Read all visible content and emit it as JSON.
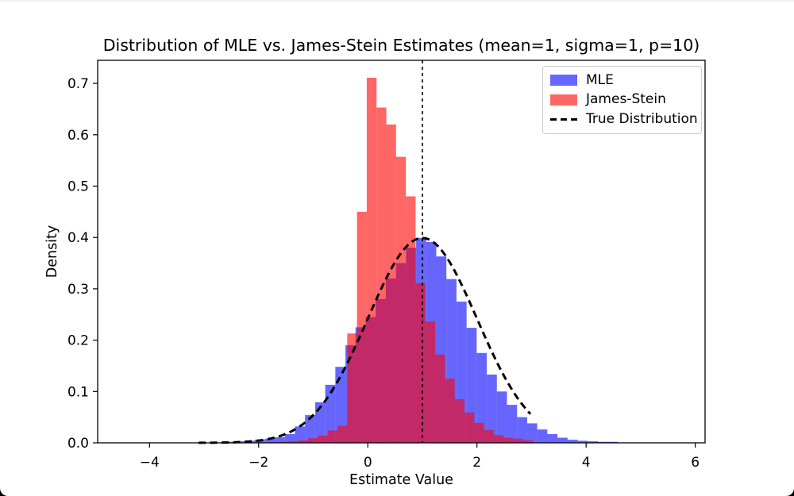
{
  "frame": {
    "corner_color": "#000000",
    "top_edge_color": "#f0f0f2"
  },
  "chart_data": {
    "type": "bar",
    "subtype": "overlaid-histograms-with-density-curve",
    "title": "Distribution of MLE vs. James-Stein Estimates (mean=1, sigma=1, p=10)",
    "xlabel": "Estimate Value",
    "ylabel": "Density",
    "xlim": [
      -4.95,
      6.18
    ],
    "ylim": [
      0,
      0.745
    ],
    "grid": false,
    "xticks": [
      {
        "v": -4,
        "label": "−4"
      },
      {
        "v": -2,
        "label": "−2"
      },
      {
        "v": 0,
        "label": "0"
      },
      {
        "v": 2,
        "label": "2"
      },
      {
        "v": 4,
        "label": "4"
      },
      {
        "v": 6,
        "label": "6"
      }
    ],
    "yticks": [
      {
        "v": 0.0,
        "label": "0.0"
      },
      {
        "v": 0.1,
        "label": "0.1"
      },
      {
        "v": 0.2,
        "label": "0.2"
      },
      {
        "v": 0.3,
        "label": "0.3"
      },
      {
        "v": 0.4,
        "label": "0.4"
      },
      {
        "v": 0.5,
        "label": "0.5"
      },
      {
        "v": 0.6,
        "label": "0.6"
      },
      {
        "v": 0.7,
        "label": "0.7"
      }
    ],
    "series": [
      {
        "name": "MLE",
        "type": "histogram",
        "color": "#0000ff",
        "alpha": 0.6,
        "bin_start": -2.63,
        "bin_width": 0.185,
        "heights": [
          0.002,
          0.003,
          0.004,
          0.006,
          0.008,
          0.011,
          0.017,
          0.032,
          0.054,
          0.079,
          0.113,
          0.148,
          0.19,
          0.225,
          0.245,
          0.28,
          0.32,
          0.35,
          0.38,
          0.399,
          0.391,
          0.363,
          0.319,
          0.275,
          0.224,
          0.175,
          0.133,
          0.1,
          0.074,
          0.05,
          0.038,
          0.026,
          0.017,
          0.01,
          0.006,
          0.004,
          0.003,
          0.002,
          0.002
        ]
      },
      {
        "name": "James-Stein",
        "type": "histogram",
        "color": "#ff0000",
        "alpha": 0.6,
        "bin_start": -1.63,
        "bin_width": 0.179,
        "heights": [
          0.002,
          0.003,
          0.005,
          0.009,
          0.014,
          0.024,
          0.033,
          0.213,
          0.45,
          0.711,
          0.653,
          0.62,
          0.557,
          0.48,
          0.311,
          0.236,
          0.172,
          0.125,
          0.085,
          0.059,
          0.039,
          0.025,
          0.015,
          0.01,
          0.008,
          0.005
        ]
      },
      {
        "name": "True Distribution",
        "type": "normal_curve",
        "color": "#000000",
        "linestyle": "dashed",
        "mean": 1,
        "sd": 1,
        "x_range": [
          -3.1,
          3.0
        ],
        "peak_density": 0.399
      }
    ],
    "vline": {
      "x": 1,
      "color": "#000000",
      "linestyle": "dashed"
    },
    "legend": {
      "position": "upper right",
      "entries": [
        {
          "label": "MLE",
          "swatch": "blue-patch"
        },
        {
          "label": "James-Stein",
          "swatch": "red-patch"
        },
        {
          "label": "True Distribution",
          "swatch": "dashed-line"
        }
      ]
    }
  }
}
